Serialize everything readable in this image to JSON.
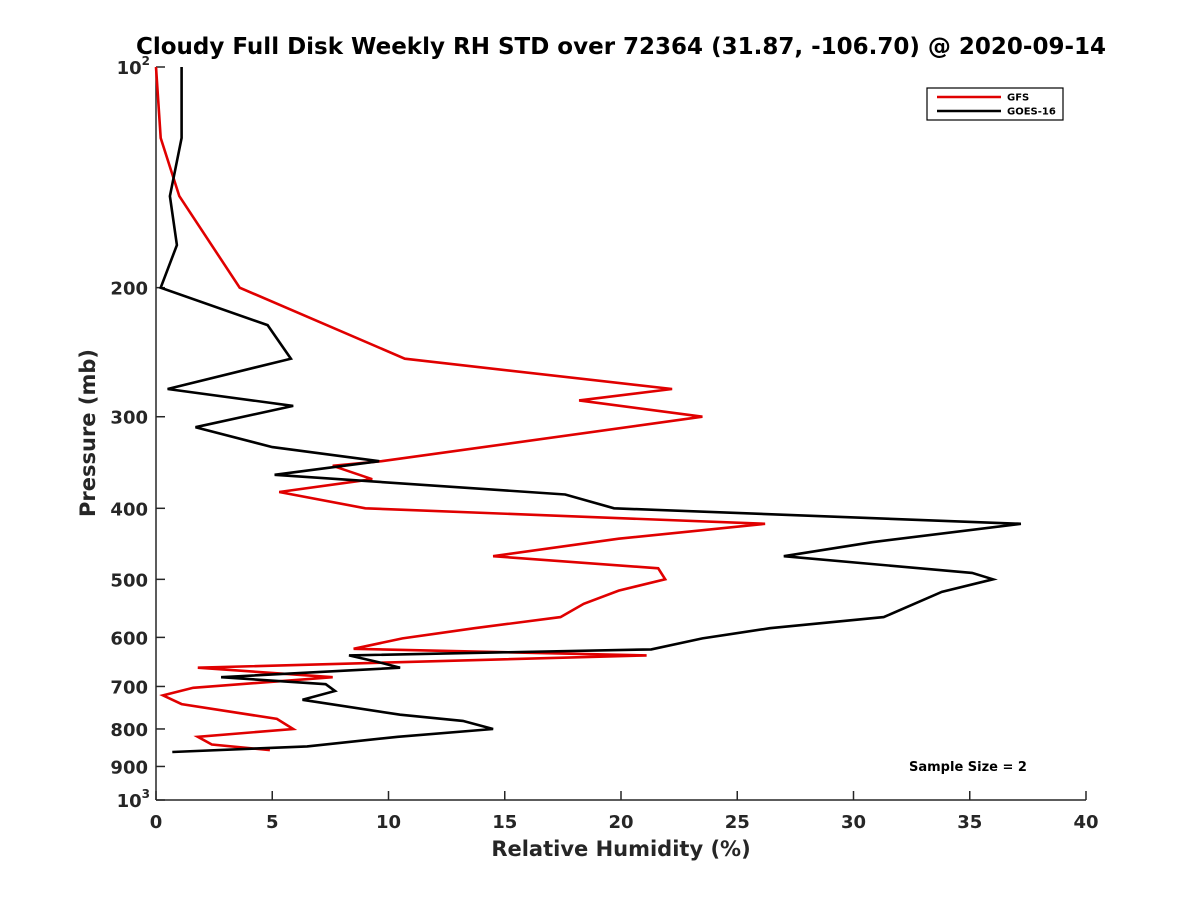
{
  "chart_data": {
    "type": "line",
    "title": "Cloudy Full Disk Weekly RH STD over 72364 (31.87, -106.70) @ 2020-09-14",
    "xlabel": "Relative Humidity (%)",
    "ylabel": "Pressure (mb)",
    "xlim": [
      0,
      40
    ],
    "ylim": [
      100,
      1000
    ],
    "y_scale": "log",
    "y_reversed": true,
    "grid": false,
    "legend_position": "top-right",
    "x_ticks": [
      "0",
      "5",
      "10",
      "15",
      "20",
      "25",
      "30",
      "35",
      "40"
    ],
    "y_ticks": [
      {
        "value": 100,
        "label": "10",
        "sup": "2"
      },
      {
        "value": 200,
        "label": "200"
      },
      {
        "value": 300,
        "label": "300"
      },
      {
        "value": 400,
        "label": "400"
      },
      {
        "value": 500,
        "label": "500"
      },
      {
        "value": 600,
        "label": "600"
      },
      {
        "value": 700,
        "label": "700"
      },
      {
        "value": 800,
        "label": "800"
      },
      {
        "value": 900,
        "label": "900"
      },
      {
        "value": 1000,
        "label": "10",
        "sup": "3"
      }
    ],
    "series": [
      {
        "name": "GFS",
        "color": "#e00000",
        "points": [
          [
            0.0,
            100
          ],
          [
            0.2,
            125
          ],
          [
            1.0,
            150
          ],
          [
            3.6,
            200
          ],
          [
            10.7,
            250
          ],
          [
            22.2,
            275
          ],
          [
            18.2,
            285
          ],
          [
            23.5,
            300
          ],
          [
            9.7,
            345
          ],
          [
            7.6,
            350
          ],
          [
            9.3,
            365
          ],
          [
            5.3,
            380
          ],
          [
            9.0,
            400
          ],
          [
            26.2,
            420
          ],
          [
            19.9,
            440
          ],
          [
            14.5,
            465
          ],
          [
            21.6,
            483
          ],
          [
            21.9,
            500
          ],
          [
            19.9,
            518
          ],
          [
            18.4,
            540
          ],
          [
            17.4,
            563
          ],
          [
            13.7,
            583
          ],
          [
            10.6,
            602
          ],
          [
            8.5,
            622
          ],
          [
            21.1,
            635
          ],
          [
            1.8,
            660
          ],
          [
            7.6,
            680
          ],
          [
            1.6,
            703
          ],
          [
            0.3,
            720
          ],
          [
            1.1,
            740
          ],
          [
            5.2,
            775
          ],
          [
            5.9,
            800
          ],
          [
            1.8,
            820
          ],
          [
            2.4,
            840
          ],
          [
            4.9,
            855
          ]
        ]
      },
      {
        "name": "GOES-16",
        "color": "#000000",
        "points": [
          [
            1.1,
            100
          ],
          [
            1.1,
            125
          ],
          [
            0.6,
            150
          ],
          [
            0.9,
            175
          ],
          [
            0.2,
            200
          ],
          [
            4.8,
            225
          ],
          [
            5.8,
            250
          ],
          [
            0.5,
            275
          ],
          [
            5.9,
            290
          ],
          [
            1.7,
            310
          ],
          [
            5.0,
            330
          ],
          [
            9.6,
            345
          ],
          [
            5.1,
            360
          ],
          [
            17.6,
            383
          ],
          [
            19.7,
            400
          ],
          [
            37.2,
            420
          ],
          [
            30.8,
            445
          ],
          [
            27.0,
            465
          ],
          [
            35.1,
            490
          ],
          [
            36.0,
            500
          ],
          [
            33.8,
            520
          ],
          [
            31.3,
            563
          ],
          [
            26.4,
            583
          ],
          [
            23.5,
            602
          ],
          [
            21.3,
            623
          ],
          [
            8.3,
            635
          ],
          [
            9.7,
            650
          ],
          [
            10.5,
            660
          ],
          [
            2.8,
            680
          ],
          [
            7.3,
            695
          ],
          [
            7.7,
            710
          ],
          [
            6.3,
            730
          ],
          [
            10.5,
            765
          ],
          [
            13.2,
            780
          ],
          [
            14.5,
            800
          ],
          [
            10.4,
            820
          ],
          [
            6.5,
            845
          ],
          [
            0.7,
            860
          ]
        ]
      }
    ],
    "annotation": "Sample Size = 2"
  }
}
